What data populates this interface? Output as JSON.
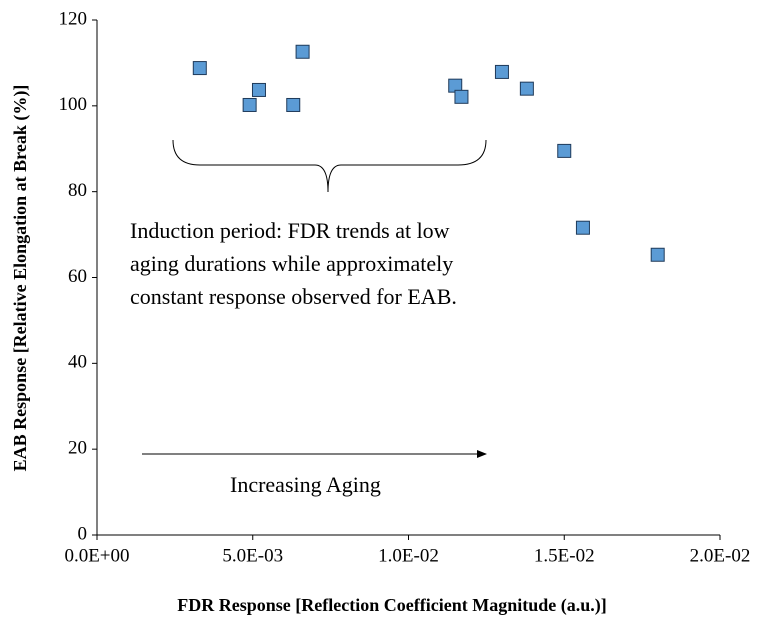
{
  "chart_data": {
    "type": "scatter",
    "xlabel": "FDR Response [Reflection Coefficient Magnitude (a.u.)]",
    "ylabel": "EAB Response [Relative Elongation at Break (%)]",
    "annotations": [
      "Induction period: FDR trends at low",
      "aging durations while approximately",
      "constant response observed for EAB.",
      "Increasing Aging"
    ],
    "series": [
      {
        "color": "#5b9bd5",
        "x": [
          0.0033,
          0.0049,
          0.0052,
          0.0066,
          0.0063,
          0.0115,
          0.0117,
          0.013,
          0.0138,
          0.015,
          0.0156,
          0.018
        ],
        "values": [
          108.8,
          100.2,
          103.7,
          112.6,
          100.2,
          104.7,
          102.1,
          107.9,
          104.0,
          89.5,
          71.6,
          65.3
        ]
      }
    ],
    "xlim": [
      0,
      0.02
    ],
    "xticks": [
      {
        "value": 0,
        "label": "0.0E+00"
      },
      {
        "value": 0.005,
        "label": "5.0E-03"
      },
      {
        "value": 0.01,
        "label": "1.0E-02"
      },
      {
        "value": 0.015,
        "label": "1.5E-02"
      },
      {
        "value": 0.02,
        "label": "2.0E-02"
      }
    ],
    "ylim": [
      0,
      120
    ],
    "yticks": [
      0,
      20,
      40,
      60,
      80,
      100,
      120
    ]
  }
}
